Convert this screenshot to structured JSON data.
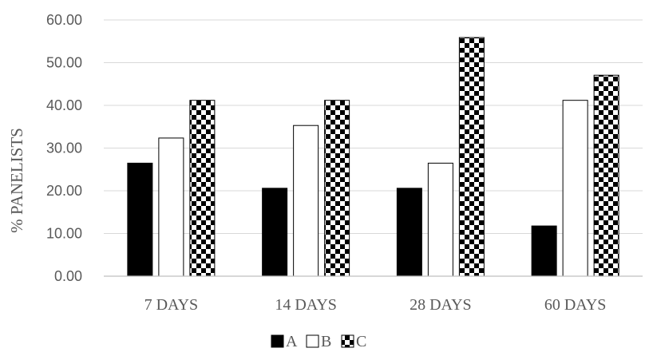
{
  "chart_data": {
    "type": "bar",
    "title": "",
    "xlabel": "",
    "ylabel": "% PANELISTS",
    "ylim": [
      0,
      60
    ],
    "yticks": [
      "0.00",
      "10.00",
      "20.00",
      "30.00",
      "40.00",
      "50.00",
      "60.00"
    ],
    "ytick_values": [
      0,
      10,
      20,
      30,
      40,
      50,
      60
    ],
    "categories": [
      "7 DAYS",
      "14 DAYS",
      "28 DAYS",
      "60 DAYS"
    ],
    "series": [
      {
        "name": "A",
        "fill": "solid",
        "color": "#000000",
        "values": [
          26.47,
          20.59,
          20.59,
          11.76
        ]
      },
      {
        "name": "B",
        "fill": "hollow",
        "color": "#ffffff",
        "values": [
          32.35,
          35.29,
          26.47,
          41.18
        ]
      },
      {
        "name": "C",
        "fill": "checkered",
        "color": "#000000",
        "values": [
          41.18,
          41.18,
          55.88,
          47.06
        ]
      }
    ],
    "grid": "horizontal",
    "legend_position": "bottom-center",
    "gridline_color": "#d9d9d9",
    "axis_color": "#bfbfbf"
  }
}
